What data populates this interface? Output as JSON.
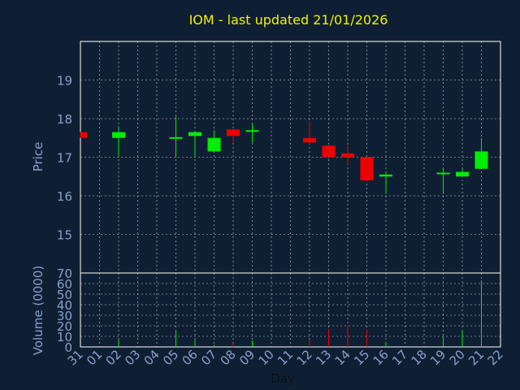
{
  "chart_data": {
    "type": "candlestick",
    "title": "IOM - last updated 21/01/2026",
    "xlabel": "Day",
    "price_panel": {
      "ylabel": "Price",
      "ylim": [
        14,
        20
      ],
      "yticks": [
        15,
        16,
        17,
        18,
        19
      ]
    },
    "volume_panel": {
      "ylabel": "Volume (0000)",
      "ylim": [
        0,
        70
      ],
      "yticks": [
        0,
        10,
        20,
        30,
        40,
        50,
        60,
        70
      ]
    },
    "x_ticks": [
      "31",
      "01",
      "02",
      "03",
      "04",
      "05",
      "06",
      "07",
      "08",
      "09",
      "10",
      "11",
      "12",
      "13",
      "14",
      "15",
      "16",
      "17",
      "18",
      "19",
      "20",
      "21",
      "22"
    ],
    "grid": true,
    "colors": {
      "background": "#0f1f33",
      "axis": "#ffffff",
      "grid": "#ffffff",
      "tick_text": "#8aa0c8",
      "title": "#f2f200",
      "up": "#00ee00",
      "down": "#ee0000"
    },
    "candles": [
      {
        "day": "31",
        "open": 17.65,
        "high": 17.65,
        "low": 17.5,
        "close": 17.5,
        "volume": 0
      },
      {
        "day": "02",
        "open": 17.5,
        "high": 17.8,
        "low": 17.0,
        "close": 17.65,
        "volume": 7
      },
      {
        "day": "05",
        "open": 17.48,
        "high": 18.05,
        "low": 17.0,
        "close": 17.52,
        "volume": 16
      },
      {
        "day": "06",
        "open": 17.55,
        "high": 17.65,
        "low": 17.0,
        "close": 17.65,
        "volume": 7
      },
      {
        "day": "07",
        "open": 17.15,
        "high": 17.7,
        "low": 17.15,
        "close": 17.5,
        "volume": 2
      },
      {
        "day": "08",
        "open": 17.72,
        "high": 17.72,
        "low": 17.38,
        "close": 17.55,
        "volume": 3
      },
      {
        "day": "09",
        "open": 17.67,
        "high": 17.85,
        "low": 17.38,
        "close": 17.7,
        "volume": 6
      },
      {
        "day": "12",
        "open": 17.5,
        "high": 17.92,
        "low": 17.35,
        "close": 17.38,
        "volume": 7
      },
      {
        "day": "13",
        "open": 17.3,
        "high": 17.3,
        "low": 17.0,
        "close": 17.0,
        "volume": 17
      },
      {
        "day": "14",
        "open": 17.1,
        "high": 17.3,
        "low": 16.8,
        "close": 17.0,
        "volume": 20
      },
      {
        "day": "15",
        "open": 17.0,
        "high": 17.0,
        "low": 16.38,
        "close": 16.4,
        "volume": 16
      },
      {
        "day": "16",
        "open": 16.5,
        "high": 16.6,
        "low": 16.05,
        "close": 16.55,
        "volume": 5
      },
      {
        "day": "19",
        "open": 16.58,
        "high": 16.7,
        "low": 16.05,
        "close": 16.6,
        "volume": 10
      },
      {
        "day": "20",
        "open": 16.5,
        "high": 16.7,
        "low": 16.5,
        "close": 16.62,
        "volume": 16
      },
      {
        "day": "21",
        "open": 16.7,
        "high": 17.5,
        "low": 16.7,
        "close": 17.15,
        "volume": 63
      }
    ]
  }
}
